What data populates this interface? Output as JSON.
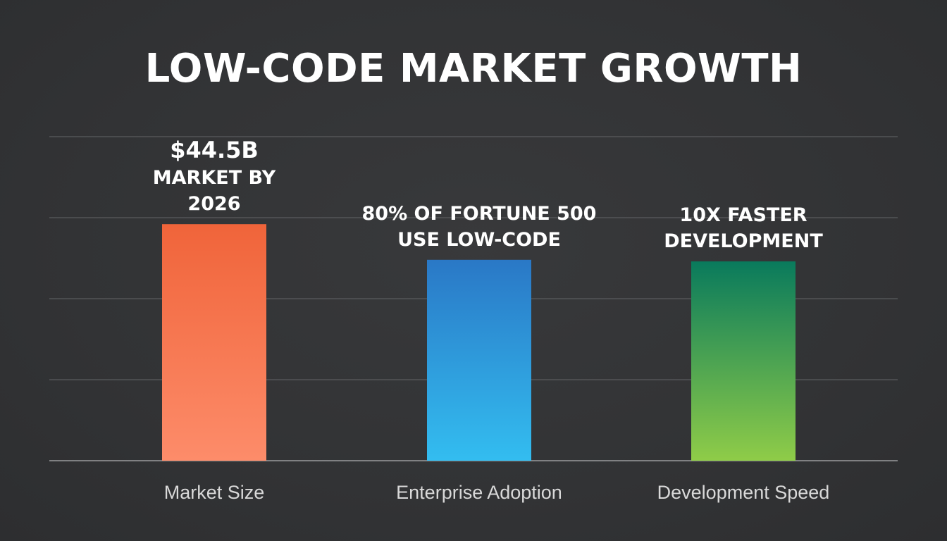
{
  "chart_data": {
    "type": "bar",
    "title": "LOW-CODE MARKET GROWTH",
    "categories": [
      "Market Size",
      "Enterprise Adoption",
      "Development Speed"
    ],
    "values": [
      73,
      62,
      61.5
    ],
    "ylim": [
      0,
      100
    ],
    "grid": true,
    "legend": "none",
    "data_labels": [
      [
        "$44.5B",
        "MARKET BY",
        "2026"
      ],
      [
        "80% OF FORTUNE 500",
        "USE LOW-CODE"
      ],
      [
        "10X FASTER",
        "DEVELOPMENT"
      ]
    ],
    "colors": [
      {
        "top": "#f0643a",
        "bottom": "#fd8c6a"
      },
      {
        "top": "#2a78c6",
        "bottom": "#33bdf0"
      },
      {
        "top": "#097a5c",
        "bottom": "#8fcc48"
      }
    ],
    "background": "#323335",
    "gridline_color": "#5a5b5e",
    "baseline_color": "#9a9b9d"
  }
}
